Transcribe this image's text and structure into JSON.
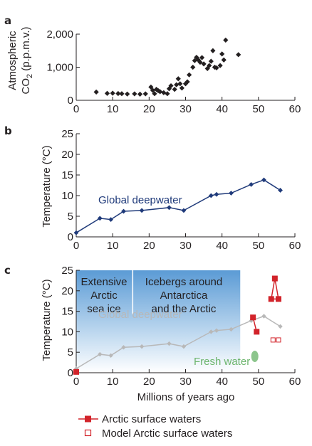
{
  "figure": {
    "panel_labels": [
      "a",
      "b",
      "c"
    ],
    "xlabel": "Millions of years ago",
    "colors": {
      "co2_marker": "#231f20",
      "deepwater": "#1f3a7a",
      "deepwater_faded": "#b8b8b8",
      "arctic": "#d2232a",
      "fresh_water": "#8cc58c",
      "ice_gradient_top": "#5b9bd5",
      "ice_gradient_bottom": "#ffffff"
    }
  },
  "legend": [
    {
      "label": "Arctic surface waters",
      "marker": "filled-square-line"
    },
    {
      "label": "Model Arctic surface waters",
      "marker": "open-square"
    }
  ],
  "chart_data": [
    {
      "panel": "a",
      "type": "scatter",
      "ylabel_line1": "Atmospheric",
      "ylabel_line2": "CO",
      "ylabel_sub": "2",
      "ylabel_rest": " (p.p.m.v.)",
      "xlim": [
        0,
        60
      ],
      "ylim": [
        0,
        2000
      ],
      "xticks": [
        0,
        10,
        20,
        30,
        40,
        50,
        60
      ],
      "yticks": [
        0,
        1000,
        2000
      ],
      "ytick_labels": [
        "0",
        "1,000",
        "2,000"
      ],
      "points": [
        [
          5.5,
          250
        ],
        [
          8.5,
          210
        ],
        [
          10,
          215
        ],
        [
          11.5,
          205
        ],
        [
          12.5,
          200
        ],
        [
          14,
          190
        ],
        [
          16,
          195
        ],
        [
          17.5,
          185
        ],
        [
          19,
          195
        ],
        [
          20.5,
          400
        ],
        [
          21,
          300
        ],
        [
          21.5,
          200
        ],
        [
          22,
          330
        ],
        [
          22.5,
          290
        ],
        [
          23,
          260
        ],
        [
          24,
          230
        ],
        [
          25,
          200
        ],
        [
          25.5,
          350
        ],
        [
          26,
          440
        ],
        [
          27,
          330
        ],
        [
          27.5,
          470
        ],
        [
          28,
          650
        ],
        [
          28.5,
          500
        ],
        [
          29,
          370
        ],
        [
          30,
          500
        ],
        [
          30.5,
          560
        ],
        [
          31,
          770
        ],
        [
          32,
          1000
        ],
        [
          32.5,
          1200
        ],
        [
          33,
          1300
        ],
        [
          33.5,
          1220
        ],
        [
          34,
          1150
        ],
        [
          34.5,
          1290
        ],
        [
          35,
          1100
        ],
        [
          36,
          960
        ],
        [
          36.5,
          1050
        ],
        [
          37,
          1180
        ],
        [
          37.5,
          1500
        ],
        [
          38,
          1000
        ],
        [
          38.5,
          980
        ],
        [
          39.5,
          1050
        ],
        [
          40,
          1400
        ],
        [
          40.5,
          1220
        ],
        [
          41,
          1820
        ],
        [
          44.5,
          1380
        ]
      ]
    },
    {
      "panel": "b",
      "type": "line",
      "ylabel": "Temperature (°C)",
      "xlim": [
        0,
        60
      ],
      "ylim": [
        0,
        25
      ],
      "xticks": [
        0,
        10,
        20,
        30,
        40,
        50,
        60
      ],
      "yticks": [
        0,
        5,
        10,
        15,
        20,
        25
      ],
      "series": [
        {
          "name": "Global deepwater",
          "x": [
            0,
            6.5,
            9.5,
            13,
            18,
            25.5,
            29.5,
            37,
            38.5,
            42.5,
            48,
            51.5,
            56
          ],
          "y": [
            1,
            4.5,
            4.2,
            6.2,
            6.4,
            7.1,
            6.4,
            10,
            10.3,
            10.6,
            12.7,
            13.8,
            11.3
          ]
        }
      ]
    },
    {
      "panel": "c",
      "type": "line",
      "ylabel": "Temperature (°C)",
      "xlabel": "Millions of years ago",
      "xlim": [
        0,
        60
      ],
      "ylim": [
        0,
        25
      ],
      "xticks": [
        0,
        10,
        20,
        30,
        40,
        50,
        60
      ],
      "yticks": [
        0,
        5,
        10,
        15,
        20,
        25
      ],
      "annotations": [
        {
          "lines": [
            "Extensive",
            "Arctic",
            "sea ice"
          ]
        },
        {
          "lines": [
            "Icebergs around",
            "Antarctica",
            "and the Arctic"
          ]
        },
        {
          "lines": [
            "Global deepwater"
          ]
        },
        {
          "lines": [
            "Fresh water"
          ]
        }
      ],
      "ice_shading_x": [
        0,
        45
      ],
      "ice_divider_x": 15.5,
      "fresh_water_marker": {
        "x": 49,
        "y": 4
      },
      "series": [
        {
          "name": "Global deepwater",
          "x": [
            0,
            6.5,
            9.5,
            13,
            18,
            25.5,
            29.5,
            37,
            38.5,
            42.5,
            48,
            51.5,
            56
          ],
          "y": [
            1,
            4.5,
            4.2,
            6.2,
            6.4,
            7.1,
            6.4,
            10,
            10.3,
            10.6,
            12.7,
            13.8,
            11.3
          ]
        },
        {
          "name": "Arctic surface waters",
          "groups": [
            {
              "x": [
                0
              ],
              "y": [
                0.2
              ]
            },
            {
              "x": [
                48.5,
                49.5
              ],
              "y": [
                13.5,
                10
              ]
            },
            {
              "x": [
                53.5,
                54.5,
                55.5
              ],
              "y": [
                18,
                23,
                18
              ]
            }
          ]
        },
        {
          "name": "Model Arctic surface waters",
          "x": [
            54,
            55.5
          ],
          "y": [
            8,
            8
          ]
        }
      ]
    }
  ]
}
